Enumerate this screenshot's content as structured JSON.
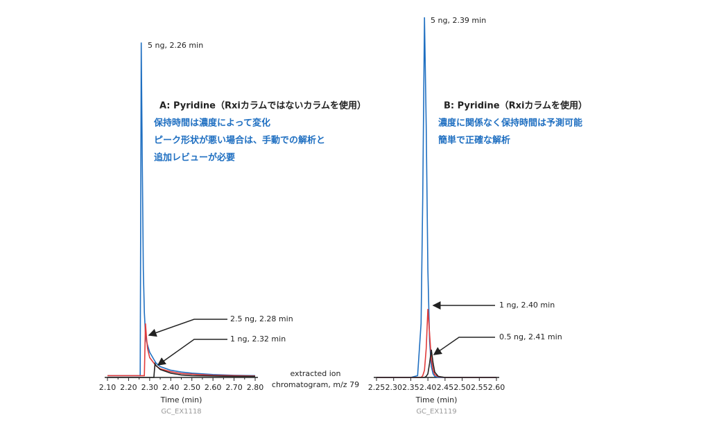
{
  "chart_data": [
    {
      "type": "line",
      "title": "A: Pyridine（Rxiカラムではないカラムを使用）",
      "notes": [
        "保持時間は濃度によって変化",
        "ピーク形状が悪い場合は、手動での解析と",
        "追加レビューが必要"
      ],
      "xlabel": "Time (min)",
      "code": "GC_EX1118",
      "side_note": [
        "extracted ion",
        "chromatogram, m/z 79"
      ],
      "xlim": [
        2.1,
        2.8
      ],
      "xticks": [
        {
          "value": 2.1,
          "label": "2.10"
        },
        {
          "value": 2.2,
          "label": "2.20"
        },
        {
          "value": 2.3,
          "label": "2.30"
        },
        {
          "value": 2.4,
          "label": "2.40"
        },
        {
          "value": 2.5,
          "label": "2.50"
        },
        {
          "value": 2.6,
          "label": "2.60"
        },
        {
          "value": 2.7,
          "label": "2.70"
        },
        {
          "value": 2.8,
          "label": "2.80"
        }
      ],
      "xminorticks": [
        2.15,
        2.25,
        2.35,
        2.45,
        2.55,
        2.65,
        2.75
      ],
      "ylim": [
        0,
        100
      ],
      "x": [
        2.1,
        2.2,
        2.25,
        2.255,
        2.26,
        2.265,
        2.27,
        2.275,
        2.28,
        2.285,
        2.29,
        2.3,
        2.32,
        2.325,
        2.33,
        2.35,
        2.4,
        2.45,
        2.5,
        2.6,
        2.7,
        2.8
      ],
      "series": [
        {
          "name": "5 ng",
          "color": "#1f6fc1",
          "values": [
            0.5,
            0.5,
            0.5,
            0.5,
            93,
            60,
            30,
            18,
            12,
            10,
            9,
            7,
            5,
            4.5,
            4,
            3,
            2,
            1.5,
            1.2,
            0.8,
            0.6,
            0.5
          ]
        },
        {
          "name": "2.5 ng",
          "color": "#e03a3a",
          "values": [
            0.5,
            0.5,
            0.5,
            0.5,
            0.5,
            0.5,
            0.5,
            0.5,
            15,
            11,
            8,
            5.5,
            4,
            3.6,
            3.2,
            2.4,
            1.6,
            1.1,
            0.9,
            0.6,
            0.5,
            0.4
          ]
        },
        {
          "name": "1 ng",
          "color": "#222222",
          "values": [
            0,
            0,
            0,
            0,
            0,
            0,
            0,
            0,
            0,
            0,
            0,
            0,
            0,
            3.8,
            3.3,
            2.2,
            1.2,
            0.7,
            0.5,
            0.4,
            0.3,
            0.3
          ]
        }
      ],
      "annotations": [
        "5 ng, 2.26 min",
        "2.5 ng, 2.28 min",
        "1 ng, 2.32 min"
      ]
    },
    {
      "type": "line",
      "title": "B: Pyridine（Rxiカラムを使用）",
      "notes": [
        "濃度に関係なく保持時間は予測可能",
        "簡単で正確な解析"
      ],
      "xlabel": "Time (min)",
      "code": "GC_EX1119",
      "xlim": [
        2.25,
        2.6
      ],
      "xticks": [
        {
          "value": 2.25,
          "label": "2.25"
        },
        {
          "value": 2.3,
          "label": "2.30"
        },
        {
          "value": 2.35,
          "label": "2.35"
        },
        {
          "value": 2.4,
          "label": "2.40"
        },
        {
          "value": 2.45,
          "label": "2.45"
        },
        {
          "value": 2.5,
          "label": "2.50"
        },
        {
          "value": 2.55,
          "label": "2.55"
        },
        {
          "value": 2.6,
          "label": "2.60"
        }
      ],
      "ylim": [
        0,
        100
      ],
      "x": [
        2.25,
        2.35,
        2.37,
        2.38,
        2.385,
        2.39,
        2.395,
        2.4,
        2.405,
        2.41,
        2.415,
        2.42,
        2.43,
        2.45,
        2.6
      ],
      "series": [
        {
          "name": "5 ng",
          "color": "#1f6fc1",
          "values": [
            0,
            0,
            0.5,
            15,
            50,
            100,
            70,
            30,
            10,
            3,
            1,
            0.3,
            0,
            0,
            0
          ]
        },
        {
          "name": "1 ng",
          "color": "#e03a3a",
          "values": [
            0,
            0,
            0,
            0,
            0.5,
            2,
            8,
            19,
            12,
            5,
            2,
            0.8,
            0.2,
            0,
            0
          ]
        },
        {
          "name": "0.5 ng",
          "color": "#222222",
          "values": [
            0,
            0,
            0,
            0,
            0,
            0,
            0.3,
            1,
            4,
            7.7,
            4,
            1.5,
            0.3,
            0,
            0
          ]
        }
      ],
      "annotations": [
        "5 ng, 2.39 min",
        "1 ng, 2.40 min",
        "0.5 ng, 2.41 min"
      ]
    }
  ]
}
